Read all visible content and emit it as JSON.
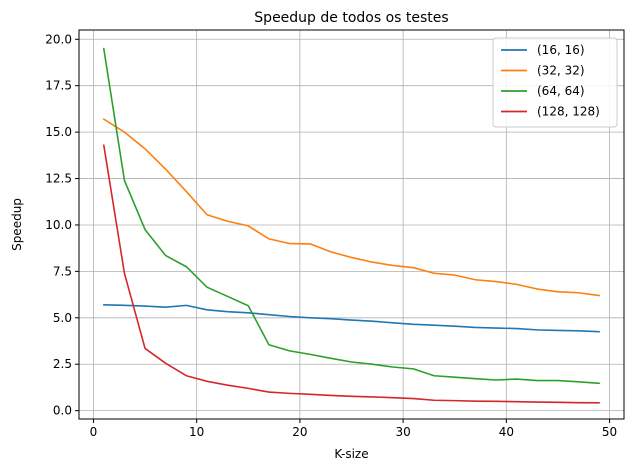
{
  "chart_data": {
    "type": "line",
    "title": "Speedup de todos os testes",
    "xlabel": "K-size",
    "ylabel": "Speedup",
    "xlim": [
      -1.4,
      51.4
    ],
    "ylim": [
      -0.45,
      20.5
    ],
    "xticks": [
      0,
      10,
      20,
      30,
      40,
      50
    ],
    "xtick_labels": [
      "0",
      "10",
      "20",
      "30",
      "40",
      "50"
    ],
    "yticks": [
      0.0,
      2.5,
      5.0,
      7.5,
      10.0,
      12.5,
      15.0,
      17.5,
      20.0
    ],
    "ytick_labels": [
      "0.0",
      "2.5",
      "5.0",
      "7.5",
      "10.0",
      "12.5",
      "15.0",
      "17.5",
      "20.0"
    ],
    "grid": true,
    "legend_position": "top-right",
    "x": [
      1,
      3,
      5,
      7,
      9,
      11,
      13,
      15,
      17,
      19,
      21,
      23,
      25,
      27,
      29,
      31,
      33,
      35,
      37,
      39,
      41,
      43,
      45,
      47,
      49
    ],
    "series": [
      {
        "name": "(16, 16)",
        "color": "#1f77b4",
        "values": [
          5.7,
          5.67,
          5.63,
          5.57,
          5.67,
          5.43,
          5.33,
          5.27,
          5.17,
          5.07,
          5.0,
          4.95,
          4.88,
          4.82,
          4.73,
          4.65,
          4.6,
          4.55,
          4.48,
          4.45,
          4.42,
          4.35,
          4.32,
          4.3,
          4.25
        ]
      },
      {
        "name": "(32, 32)",
        "color": "#ff7f0e",
        "values": [
          15.7,
          15.0,
          14.1,
          13.0,
          11.8,
          10.55,
          10.2,
          9.95,
          9.25,
          9.0,
          8.98,
          8.55,
          8.25,
          8.0,
          7.82,
          7.7,
          7.4,
          7.3,
          7.05,
          6.95,
          6.8,
          6.55,
          6.4,
          6.35,
          6.2
        ]
      },
      {
        "name": "(64, 64)",
        "color": "#2ca02c",
        "values": [
          19.5,
          12.4,
          9.75,
          8.35,
          7.75,
          6.65,
          6.15,
          5.65,
          3.55,
          3.22,
          3.03,
          2.82,
          2.62,
          2.5,
          2.35,
          2.25,
          1.88,
          1.8,
          1.72,
          1.65,
          1.7,
          1.62,
          1.62,
          1.55,
          1.47
        ]
      },
      {
        "name": "(128, 128)",
        "color": "#d62728",
        "values": [
          14.3,
          7.4,
          3.35,
          2.55,
          1.88,
          1.58,
          1.37,
          1.2,
          1.0,
          0.93,
          0.88,
          0.82,
          0.77,
          0.74,
          0.7,
          0.65,
          0.56,
          0.54,
          0.51,
          0.5,
          0.48,
          0.46,
          0.45,
          0.43,
          0.42
        ]
      }
    ]
  }
}
